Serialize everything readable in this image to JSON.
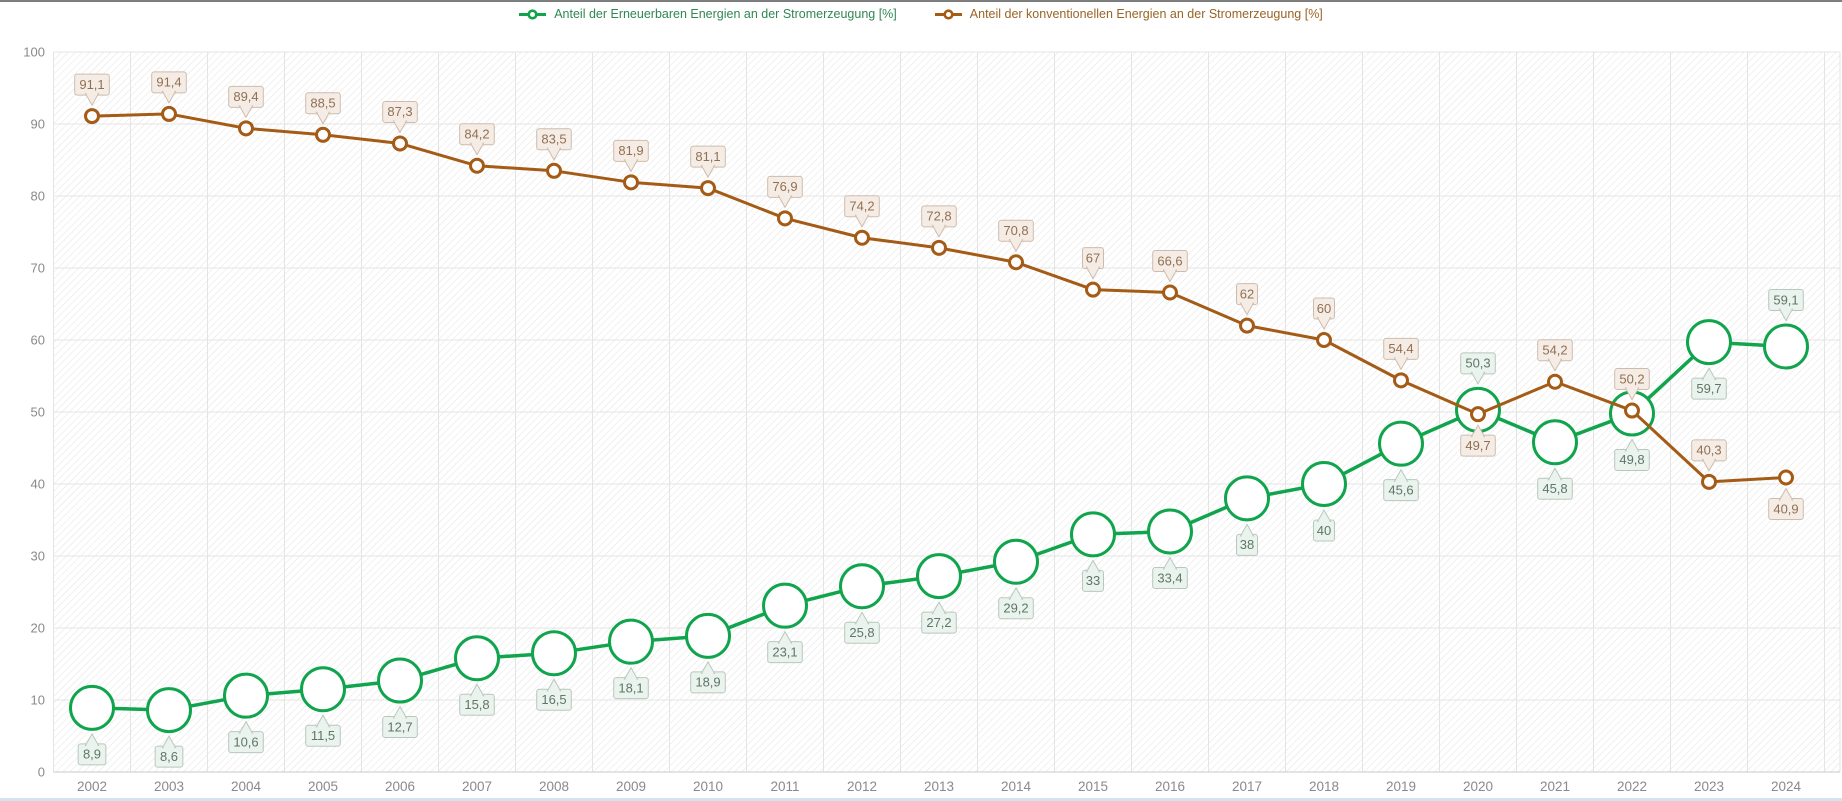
{
  "window": {
    "background": "#ffffff",
    "top_border_color": "#7d7d7d",
    "bottom_border_color": "#d5e3f0"
  },
  "legend": {
    "position": "top-center",
    "items": [
      {
        "label": "Anteil der Erneuerbaren Energien an der Stromerzeugung [%]",
        "series_key": "erneuerbare",
        "color": "#10a44d",
        "text_color": "#2f8752"
      },
      {
        "label": "Anteil der konventionellen Energien an der Stromerzeugung [%]",
        "series_key": "konventionelle",
        "color": "#a45b16",
        "text_color": "#9a6424"
      }
    ]
  },
  "chart_data": {
    "type": "line",
    "title": "",
    "xlabel": "",
    "ylabel": "",
    "x": [
      2002,
      2003,
      2004,
      2005,
      2006,
      2007,
      2008,
      2009,
      2010,
      2011,
      2012,
      2013,
      2014,
      2015,
      2016,
      2017,
      2018,
      2019,
      2020,
      2021,
      2022,
      2023,
      2024
    ],
    "series": [
      {
        "key": "erneuerbare",
        "name": "Anteil der Erneuerbaren Energien an der Stromerzeugung [%]",
        "color": "#10a44d",
        "line_width": 3.5,
        "marker": {
          "shape": "circle",
          "fill": "#ffffff",
          "radius": 21.5,
          "stroke_width": 3
        },
        "values": [
          8.9,
          8.6,
          10.6,
          11.5,
          12.7,
          15.8,
          16.5,
          18.1,
          18.9,
          23.1,
          25.8,
          27.2,
          29.2,
          33,
          33.4,
          38,
          40,
          45.6,
          50.3,
          45.8,
          49.8,
          59.7,
          59.1
        ],
        "labels": {
          "bg": "#eaf3ed",
          "border": "#b8c8bd",
          "text": "#5e7766",
          "default_side": "below",
          "side_exceptions": {
            "2020": "above",
            "2024": "above"
          }
        }
      },
      {
        "key": "konventionelle",
        "name": "Anteil der konventionellen Energien an der Stromerzeugung [%]",
        "color": "#a45b16",
        "line_width": 3,
        "marker": {
          "shape": "circle",
          "fill": "#ffffff",
          "radius": 6.5,
          "stroke_width": 3
        },
        "values": [
          91.1,
          91.4,
          89.4,
          88.5,
          87.3,
          84.2,
          83.5,
          81.9,
          81.1,
          76.9,
          74.2,
          72.8,
          70.8,
          67,
          66.6,
          62,
          60,
          54.4,
          49.7,
          54.2,
          50.2,
          40.3,
          40.9
        ],
        "labels": {
          "bg": "#f5ede5",
          "border": "#cdbcad",
          "text": "#926f52",
          "default_side": "above",
          "side_exceptions": {
            "2020": "below",
            "2024": "below"
          }
        }
      }
    ],
    "ylim": [
      0,
      100
    ],
    "yticks": [
      0,
      10,
      20,
      30,
      40,
      50,
      60,
      70,
      80,
      90,
      100
    ],
    "grid": true,
    "plot_background": "diagonal-hatch",
    "legend_position": "top-center",
    "decimal_separator": ",",
    "axis_text_color": "#8a8a8a",
    "gridline_color": "#e4e4e4"
  }
}
